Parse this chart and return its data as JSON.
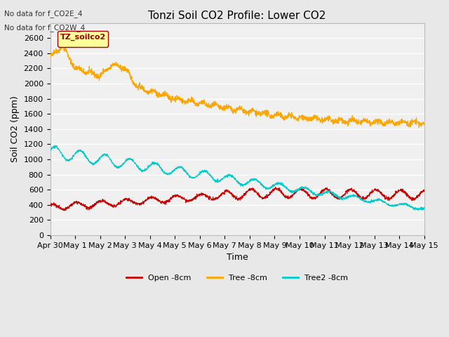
{
  "title": "Tonzi Soil CO2 Profile: Lower CO2",
  "ylabel": "Soil CO2 (ppm)",
  "xlabel": "Time",
  "annotations": [
    "No data for f_CO2E_4",
    "No data for f_CO2W_4"
  ],
  "legend_box_label": "TZ_soilco2",
  "legend_entries": [
    "Open -8cm",
    "Tree -8cm",
    "Tree2 -8cm"
  ],
  "open_color": "#cc0000",
  "tree_color": "#ffa500",
  "tree2_color": "#00cccc",
  "background_color": "#e8e8e8",
  "plot_bg_color": "#f0f0f0",
  "ylim": [
    0,
    2800
  ],
  "yticks": [
    0,
    200,
    400,
    600,
    800,
    1000,
    1200,
    1400,
    1600,
    1800,
    2000,
    2200,
    2400,
    2600
  ],
  "xtick_labels": [
    "Apr 30",
    "May 1",
    "May 2",
    "May 3",
    "May 4",
    "May 5",
    "May 6",
    "May 7",
    "May 8",
    "May 9",
    "May 10",
    "May 11",
    "May 12",
    "May 13",
    "May 14",
    "May 15"
  ],
  "title_fontsize": 11,
  "label_fontsize": 9,
  "tick_fontsize": 8
}
